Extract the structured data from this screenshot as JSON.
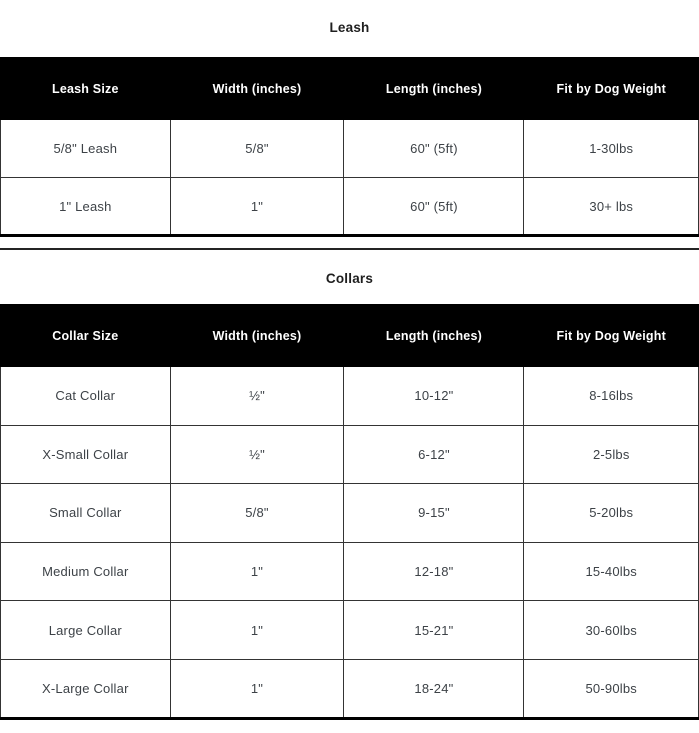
{
  "colors": {
    "header_bg": "#000000",
    "header_text": "#ffffff",
    "body_text": "#3d4247",
    "muted_text": "#949aa1",
    "border": "#343434",
    "title_text": "#1f1f1f",
    "page_bg": "#ffffff"
  },
  "sections": [
    {
      "title": "Leash",
      "columns": [
        "Leash Size",
        "Width (inches)",
        "Length (inches)",
        "Fit by Dog Weight"
      ],
      "rows": [
        [
          "5/8\" Leash",
          "5/8\"",
          "60\" (5ft)",
          "1-30lbs"
        ],
        [
          "1\" Leash",
          "1\"",
          "60\" (5ft)",
          "30+ lbs"
        ]
      ]
    },
    {
      "title": "Collars",
      "columns": [
        "Collar Size",
        "Width (inches)",
        "Length (inches)",
        "Fit by Dog Weight"
      ],
      "muted_cell": {
        "row": 0,
        "col": 3
      },
      "rows": [
        [
          "Cat Collar",
          "½\"",
          "10-12\"",
          "8-16lbs"
        ],
        [
          "X-Small Collar",
          "½\"",
          "6-12\"",
          "2-5lbs"
        ],
        [
          "Small Collar",
          "5/8\"",
          "9-15\"",
          "5-20lbs"
        ],
        [
          "Medium Collar",
          "1\"",
          "12-18\"",
          "15-40lbs"
        ],
        [
          "Large Collar",
          "1\"",
          "15-21\"",
          "30-60lbs"
        ],
        [
          "X-Large Collar",
          "1\"",
          "18-24\"",
          "50-90lbs"
        ]
      ]
    }
  ]
}
